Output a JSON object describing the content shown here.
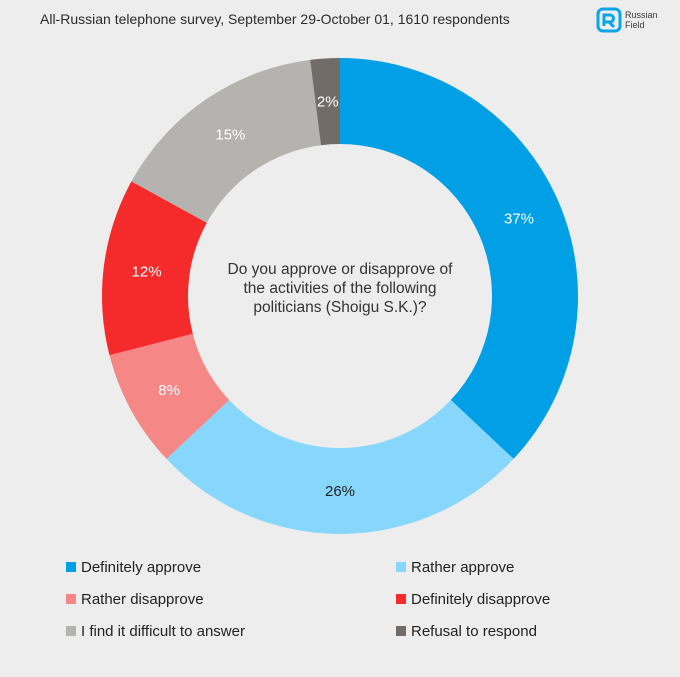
{
  "header": {
    "title": "All-Russian telephone survey, September 29-October 01, 1610 respondents"
  },
  "logo": {
    "line1": "Russian",
    "line2": "Field",
    "color": "#0aa5e6"
  },
  "chart_data": {
    "type": "pie",
    "donut": true,
    "title": "Do you approve or disapprove of the activities of the following politicians (Shoigu S.K.)?",
    "center_text_lines": [
      "Do you approve or disapprove of",
      "the activities of the following",
      "politicians (Shoigu S.K.)?"
    ],
    "unit": "%",
    "slices": [
      {
        "label": "Definitely approve",
        "value": 37,
        "color": "#009fe6",
        "text_color": "#ffffff"
      },
      {
        "label": "Rather approve",
        "value": 26,
        "color": "#87d6fb",
        "text_color": "#222222"
      },
      {
        "label": "Rather disapprove",
        "value": 8,
        "color": "#f58787",
        "text_color": "#ffffff"
      },
      {
        "label": "Definitely disapprove",
        "value": 12,
        "color": "#f52a2a",
        "text_color": "#ffffff"
      },
      {
        "label": "I find it difficult to answer",
        "value": 15,
        "color": "#b5b3af",
        "text_color": "#ffffff"
      },
      {
        "label": "Refusal to respond",
        "value": 2,
        "color": "#716c68",
        "text_color": "#ffffff"
      }
    ],
    "legend_position": "bottom"
  }
}
